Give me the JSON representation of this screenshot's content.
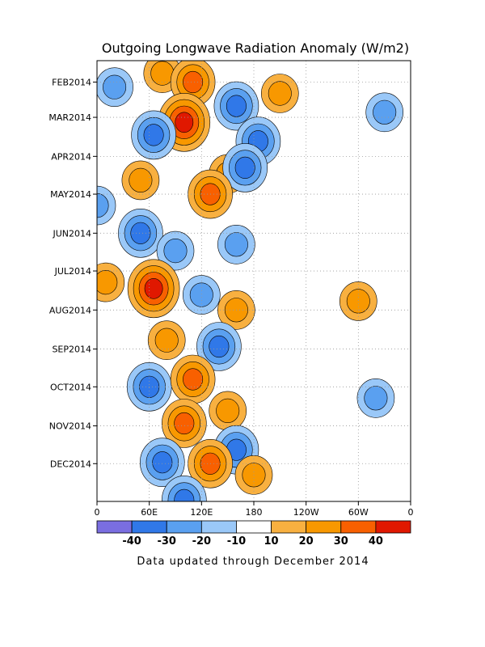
{
  "chart_data": {
    "type": "heatmap",
    "title": "Outgoing Longwave Radiation Anomaly (W/m2)",
    "xlabel": "",
    "ylabel": "",
    "x_ticks": [
      "0",
      "60E",
      "120E",
      "180",
      "120W",
      "60W",
      "0"
    ],
    "x_range_deg_east": [
      0,
      360
    ],
    "y_ticks": [
      "FEB2014",
      "MAR2014",
      "APR2014",
      "MAY2014",
      "JUN2014",
      "JUL2014",
      "AUG2014",
      "SEP2014",
      "OCT2014",
      "NOV2014",
      "DEC2014"
    ],
    "y_range": [
      "2014-01-15",
      "2014-12-31"
    ],
    "grid": "dotted",
    "contour_levels": [
      -40,
      -30,
      -20,
      -10,
      10,
      20,
      30,
      40
    ],
    "colorbar": {
      "labels": [
        "-40",
        "-30",
        "-20",
        "-10",
        "10",
        "20",
        "30",
        "40"
      ],
      "colors": [
        "#7a6ee0",
        "#3078e8",
        "#5aa0f0",
        "#9ac8f8",
        "#ffffff",
        "#f8b040",
        "#f89800",
        "#f86000",
        "#e01800"
      ]
    },
    "anomalies": [
      {
        "lon": 75,
        "date": "2014-01-25",
        "value": 20,
        "sign": "positive"
      },
      {
        "lon": 110,
        "date": "2014-02-01",
        "value": 30,
        "sign": "positive"
      },
      {
        "lon": 210,
        "date": "2014-02-10",
        "value": 20,
        "sign": "positive"
      },
      {
        "lon": 20,
        "date": "2014-02-05",
        "value": -20,
        "sign": "negative"
      },
      {
        "lon": 160,
        "date": "2014-02-20",
        "value": -30,
        "sign": "negative"
      },
      {
        "lon": 100,
        "date": "2014-03-05",
        "value": 40,
        "sign": "positive"
      },
      {
        "lon": 65,
        "date": "2014-03-15",
        "value": -30,
        "sign": "negative"
      },
      {
        "lon": 185,
        "date": "2014-03-20",
        "value": -30,
        "sign": "negative"
      },
      {
        "lon": 150,
        "date": "2014-04-15",
        "value": 20,
        "sign": "positive"
      },
      {
        "lon": 170,
        "date": "2014-04-10",
        "value": -30,
        "sign": "negative"
      },
      {
        "lon": 50,
        "date": "2014-04-20",
        "value": 20,
        "sign": "positive"
      },
      {
        "lon": 130,
        "date": "2014-05-01",
        "value": 30,
        "sign": "positive"
      },
      {
        "lon": 0,
        "date": "2014-05-10",
        "value": -20,
        "sign": "negative"
      },
      {
        "lon": 50,
        "date": "2014-06-01",
        "value": -30,
        "sign": "negative"
      },
      {
        "lon": 90,
        "date": "2014-06-15",
        "value": -20,
        "sign": "negative"
      },
      {
        "lon": 160,
        "date": "2014-06-10",
        "value": -20,
        "sign": "negative"
      },
      {
        "lon": 65,
        "date": "2014-07-15",
        "value": 40,
        "sign": "positive"
      },
      {
        "lon": 10,
        "date": "2014-07-10",
        "value": 20,
        "sign": "positive"
      },
      {
        "lon": 120,
        "date": "2014-07-20",
        "value": -20,
        "sign": "negative"
      },
      {
        "lon": 160,
        "date": "2014-08-01",
        "value": 20,
        "sign": "positive"
      },
      {
        "lon": 80,
        "date": "2014-08-25",
        "value": 20,
        "sign": "positive"
      },
      {
        "lon": 140,
        "date": "2014-08-30",
        "value": -30,
        "sign": "negative"
      },
      {
        "lon": 60,
        "date": "2014-10-01",
        "value": -30,
        "sign": "negative"
      },
      {
        "lon": 110,
        "date": "2014-09-25",
        "value": 30,
        "sign": "positive"
      },
      {
        "lon": 100,
        "date": "2014-10-30",
        "value": 30,
        "sign": "positive"
      },
      {
        "lon": 150,
        "date": "2014-10-20",
        "value": 20,
        "sign": "positive"
      },
      {
        "lon": 160,
        "date": "2014-11-20",
        "value": -30,
        "sign": "negative"
      },
      {
        "lon": 75,
        "date": "2014-11-30",
        "value": -30,
        "sign": "negative"
      },
      {
        "lon": 130,
        "date": "2014-12-01",
        "value": 30,
        "sign": "positive"
      },
      {
        "lon": 180,
        "date": "2014-12-10",
        "value": 20,
        "sign": "positive"
      },
      {
        "lon": 100,
        "date": "2014-12-30",
        "value": -30,
        "sign": "negative"
      },
      {
        "lon": 300,
        "date": "2014-07-25",
        "value": 20,
        "sign": "positive"
      },
      {
        "lon": 330,
        "date": "2014-02-25",
        "value": -20,
        "sign": "negative"
      },
      {
        "lon": 320,
        "date": "2014-10-10",
        "value": -20,
        "sign": "negative"
      }
    ]
  },
  "footer": {
    "note": "Data updated through December 2014"
  }
}
